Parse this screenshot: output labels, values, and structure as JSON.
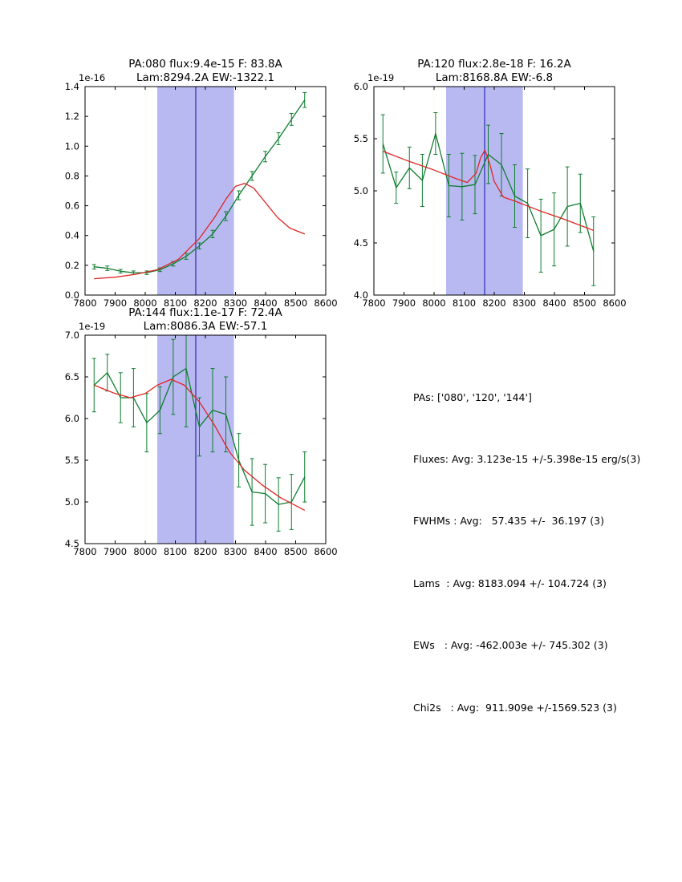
{
  "colors": {
    "background": "#ffffff",
    "data_line": "#0e7d2f",
    "fit_line": "#e02525",
    "band": "#b9b9f2",
    "vline": "#2a2ab8",
    "axis": "#000000"
  },
  "stats_panel": {
    "lines": [
      "PAs: ['080', '120', '144']",
      "Fluxes: Avg: 3.123e-15 +/-5.398e-15 erg/s(3)",
      "FWHMs : Avg:   57.435 +/-  36.197 (3)",
      "Lams  : Avg: 8183.094 +/- 104.724 (3)",
      "EWs   : Avg: -462.003e +/- 745.302 (3)",
      "Chi2s   : Avg:  911.909e +/-1569.523 (3)"
    ]
  },
  "chart_data": [
    {
      "type": "line",
      "title_line1": "PA:080 flux:9.4e-15 F: 83.8A",
      "title_line2": "Lam:8294.2A EW:-1322.1",
      "offset_label": "1e-16",
      "xlim": [
        7800,
        8600
      ],
      "ylim": [
        0.0,
        1.4
      ],
      "xticks": [
        7800,
        7900,
        8000,
        8100,
        8200,
        8300,
        8400,
        8500,
        8600
      ],
      "yticks": [
        "0.0",
        "0.2",
        "0.4",
        "0.6",
        "0.8",
        "1.0",
        "1.2",
        "1.4"
      ],
      "band": [
        8040,
        8295
      ],
      "vline": 8168,
      "grid": false,
      "legend": "none",
      "series": [
        {
          "name": "spectrum",
          "color_key": "data_line",
          "x": [
            7830,
            7874,
            7918,
            7961,
            8005,
            8049,
            8093,
            8136,
            8180,
            8224,
            8268,
            8311,
            8355,
            8399,
            8443,
            8486,
            8530
          ],
          "y": [
            0.19,
            0.18,
            0.16,
            0.15,
            0.15,
            0.17,
            0.21,
            0.26,
            0.33,
            0.41,
            0.53,
            0.67,
            0.8,
            0.93,
            1.05,
            1.18,
            1.31
          ],
          "yerr": [
            0.015,
            0.015,
            0.012,
            0.012,
            0.012,
            0.012,
            0.015,
            0.02,
            0.02,
            0.025,
            0.03,
            0.03,
            0.03,
            0.035,
            0.04,
            0.04,
            0.05
          ]
        },
        {
          "name": "fit",
          "color_key": "fit_line",
          "x": [
            7830,
            7900,
            7970,
            8040,
            8110,
            8180,
            8230,
            8270,
            8300,
            8330,
            8360,
            8400,
            8440,
            8480,
            8530
          ],
          "y": [
            0.11,
            0.12,
            0.14,
            0.17,
            0.24,
            0.38,
            0.52,
            0.65,
            0.73,
            0.75,
            0.72,
            0.62,
            0.52,
            0.45,
            0.41
          ]
        }
      ]
    },
    {
      "type": "line",
      "title_line1": "PA:120 flux:2.8e-18 F: 16.2A",
      "title_line2": "Lam:8168.8A EW:-6.8",
      "offset_label": "1e-19",
      "xlim": [
        7800,
        8600
      ],
      "ylim": [
        4.0,
        6.0
      ],
      "xticks": [
        7800,
        7900,
        8000,
        8100,
        8200,
        8300,
        8400,
        8500,
        8600
      ],
      "yticks": [
        "4.0",
        "4.5",
        "5.0",
        "5.5",
        "6.0"
      ],
      "band": [
        8040,
        8295
      ],
      "vline": 8168,
      "grid": false,
      "legend": "none",
      "series": [
        {
          "name": "spectrum",
          "color_key": "data_line",
          "x": [
            7830,
            7874,
            7918,
            7961,
            8005,
            8049,
            8093,
            8136,
            8180,
            8224,
            8268,
            8311,
            8355,
            8399,
            8443,
            8486,
            8530
          ],
          "y": [
            5.45,
            5.03,
            5.22,
            5.1,
            5.55,
            5.05,
            5.04,
            5.06,
            5.35,
            5.25,
            4.95,
            4.88,
            4.57,
            4.63,
            4.85,
            4.88,
            4.42
          ],
          "yerr": [
            0.28,
            0.15,
            0.2,
            0.25,
            0.2,
            0.3,
            0.32,
            0.28,
            0.28,
            0.3,
            0.3,
            0.33,
            0.35,
            0.35,
            0.38,
            0.28,
            0.33
          ]
        },
        {
          "name": "fit",
          "color_key": "fit_line",
          "x": [
            7830,
            7910,
            7990,
            8070,
            8110,
            8140,
            8155,
            8169,
            8185,
            8200,
            8230,
            8270,
            8350,
            8430,
            8530
          ],
          "y": [
            5.38,
            5.29,
            5.21,
            5.12,
            5.08,
            5.17,
            5.32,
            5.39,
            5.26,
            5.09,
            4.94,
            4.9,
            4.81,
            4.73,
            4.62
          ]
        }
      ]
    },
    {
      "type": "line",
      "title_line1": "PA:144 flux:1.1e-17 F: 72.4A",
      "title_line2": "Lam:8086.3A EW:-57.1",
      "offset_label": "1e-19",
      "xlim": [
        7800,
        8600
      ],
      "ylim": [
        4.5,
        7.0
      ],
      "xticks": [
        7800,
        7900,
        8000,
        8100,
        8200,
        8300,
        8400,
        8500,
        8600
      ],
      "yticks": [
        "4.5",
        "5.0",
        "5.5",
        "6.0",
        "6.5",
        "7.0"
      ],
      "band": [
        8040,
        8295
      ],
      "vline": 8168,
      "grid": false,
      "legend": "none",
      "series": [
        {
          "name": "spectrum",
          "color_key": "data_line",
          "x": [
            7830,
            7874,
            7918,
            7961,
            8005,
            8049,
            8093,
            8136,
            8180,
            8224,
            8268,
            8311,
            8355,
            8399,
            8443,
            8486,
            8530
          ],
          "y": [
            6.4,
            6.55,
            6.25,
            6.25,
            5.95,
            6.1,
            6.5,
            6.6,
            5.9,
            6.1,
            6.05,
            5.5,
            5.12,
            5.1,
            4.97,
            5.0,
            5.3
          ],
          "yerr": [
            0.32,
            0.22,
            0.3,
            0.35,
            0.35,
            0.28,
            0.45,
            0.7,
            0.35,
            0.5,
            0.45,
            0.32,
            0.4,
            0.35,
            0.32,
            0.33,
            0.3
          ]
        },
        {
          "name": "fit",
          "color_key": "fit_line",
          "x": [
            7830,
            7900,
            7950,
            8000,
            8040,
            8086,
            8130,
            8180,
            8230,
            8280,
            8330,
            8390,
            8450,
            8530
          ],
          "y": [
            6.4,
            6.3,
            6.25,
            6.3,
            6.4,
            6.47,
            6.4,
            6.2,
            5.92,
            5.6,
            5.38,
            5.2,
            5.05,
            4.9
          ]
        }
      ]
    }
  ]
}
